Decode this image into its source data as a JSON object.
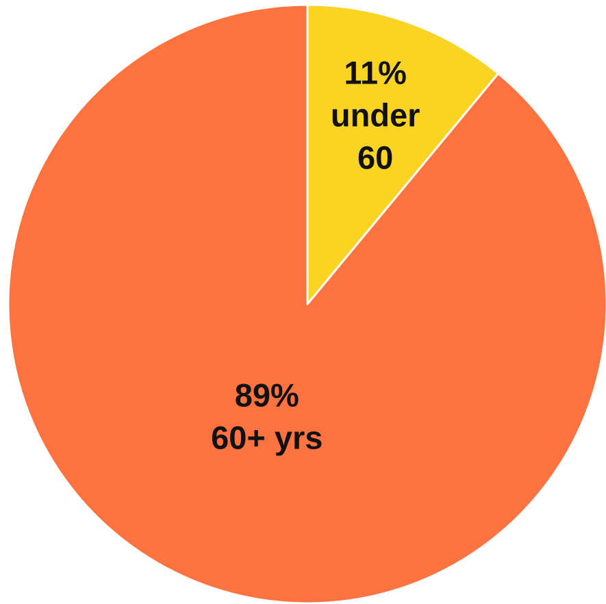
{
  "chart_data": {
    "type": "pie",
    "start_angle_deg": 0,
    "direction": "counterclockwise",
    "slice_stroke_color": "#ffffff",
    "slices": [
      {
        "name": "60+ yrs",
        "value": 89,
        "color": "#FF7340",
        "label_lines": [
          "89%",
          "60+ yrs"
        ]
      },
      {
        "name": "under 60",
        "value": 11,
        "color": "#FBD322",
        "label_lines": [
          "11%",
          "under",
          "60"
        ]
      }
    ]
  }
}
